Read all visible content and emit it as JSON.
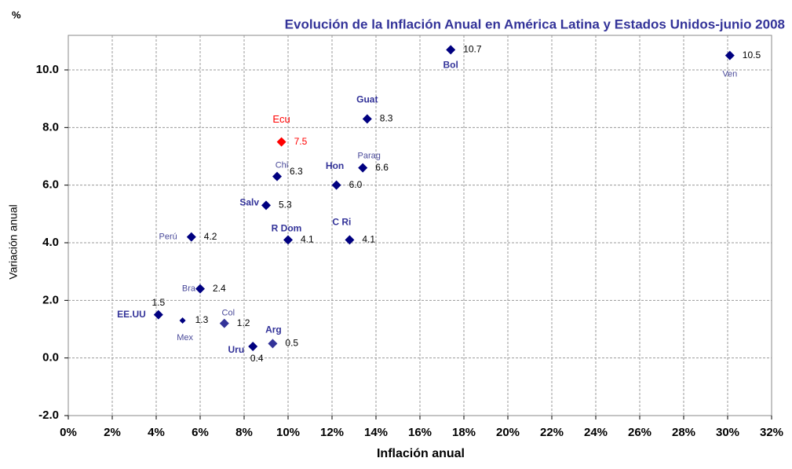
{
  "chart_data": {
    "type": "scatter",
    "title": "Evolución de la Inflación Anual en América Latina y Estados Unidos-junio 2008",
    "y_unit": "%",
    "xlabel": "Inflación anual",
    "ylabel": "Variación anual",
    "xlim": [
      0,
      32
    ],
    "ylim": [
      -2,
      11.2
    ],
    "xticks": [
      {
        "value": 0,
        "label": "0%"
      },
      {
        "value": 2,
        "label": "2%"
      },
      {
        "value": 4,
        "label": "4%"
      },
      {
        "value": 6,
        "label": "6%"
      },
      {
        "value": 8,
        "label": "8%"
      },
      {
        "value": 10,
        "label": "10%"
      },
      {
        "value": 12,
        "label": "12%"
      },
      {
        "value": 14,
        "label": "14%"
      },
      {
        "value": 16,
        "label": "16%"
      },
      {
        "value": 18,
        "label": "18%"
      },
      {
        "value": 20,
        "label": "20%"
      },
      {
        "value": 22,
        "label": "22%"
      },
      {
        "value": 24,
        "label": "24%"
      },
      {
        "value": 26,
        "label": "26%"
      },
      {
        "value": 28,
        "label": "28%"
      },
      {
        "value": 30,
        "label": "30%"
      },
      {
        "value": 32,
        "label": "32%"
      }
    ],
    "yticks": [
      {
        "value": -2,
        "label": "-2.0"
      },
      {
        "value": 0,
        "label": "0.0"
      },
      {
        "value": 2,
        "label": "2.0"
      },
      {
        "value": 4,
        "label": "4.0"
      },
      {
        "value": 6,
        "label": "6.0"
      },
      {
        "value": 8,
        "label": "8.0"
      },
      {
        "value": 10,
        "label": "10.0"
      }
    ],
    "grid": true,
    "points": [
      {
        "label": "Bol",
        "x": 17.4,
        "y": 10.7,
        "value_label": "10.7",
        "color": "#000080"
      },
      {
        "label": "Ven",
        "x": 30.1,
        "y": 10.5,
        "value_label": "10.5",
        "color": "#000080"
      },
      {
        "label": "Guat",
        "x": 13.6,
        "y": 8.3,
        "value_label": "8.3",
        "color": "#000080"
      },
      {
        "label": "Ecu",
        "x": 9.7,
        "y": 7.5,
        "value_label": "7.5",
        "color": "#ff0000"
      },
      {
        "label": "Chi",
        "x": 9.5,
        "y": 6.3,
        "value_label": "6.3",
        "color": "#000080"
      },
      {
        "label": "Parag",
        "x": 13.4,
        "y": 6.6,
        "value_label": "6.6",
        "color": "#000080"
      },
      {
        "label": "Hon",
        "x": 12.2,
        "y": 6.0,
        "value_label": "6.0",
        "color": "#000080"
      },
      {
        "label": "Salv",
        "x": 9.0,
        "y": 5.3,
        "value_label": "5.3",
        "color": "#000080"
      },
      {
        "label": "R Dom",
        "x": 10.0,
        "y": 4.1,
        "value_label": "4.1",
        "color": "#000080"
      },
      {
        "label": "C Ri",
        "x": 12.8,
        "y": 4.1,
        "value_label": "4.1",
        "color": "#000080"
      },
      {
        "label": "Perú",
        "x": 5.6,
        "y": 4.2,
        "value_label": "4.2",
        "color": "#000080"
      },
      {
        "label": "Bra",
        "x": 6.0,
        "y": 2.4,
        "value_label": "2.4",
        "color": "#000080"
      },
      {
        "label": "EE.UU",
        "x": 4.1,
        "y": 1.5,
        "value_label": "1.5",
        "color": "#000080"
      },
      {
        "label": "Mex",
        "x": 5.2,
        "y": 1.3,
        "value_label": "1.3",
        "color": "#000080"
      },
      {
        "label": "Col",
        "x": 7.1,
        "y": 1.2,
        "value_label": "1.2",
        "color": "#333399"
      },
      {
        "label": "Arg",
        "x": 9.3,
        "y": 0.5,
        "value_label": "0.5",
        "color": "#333399"
      },
      {
        "label": "Uru",
        "x": 8.4,
        "y": 0.4,
        "value_label": "0.4",
        "color": "#000080"
      }
    ]
  }
}
